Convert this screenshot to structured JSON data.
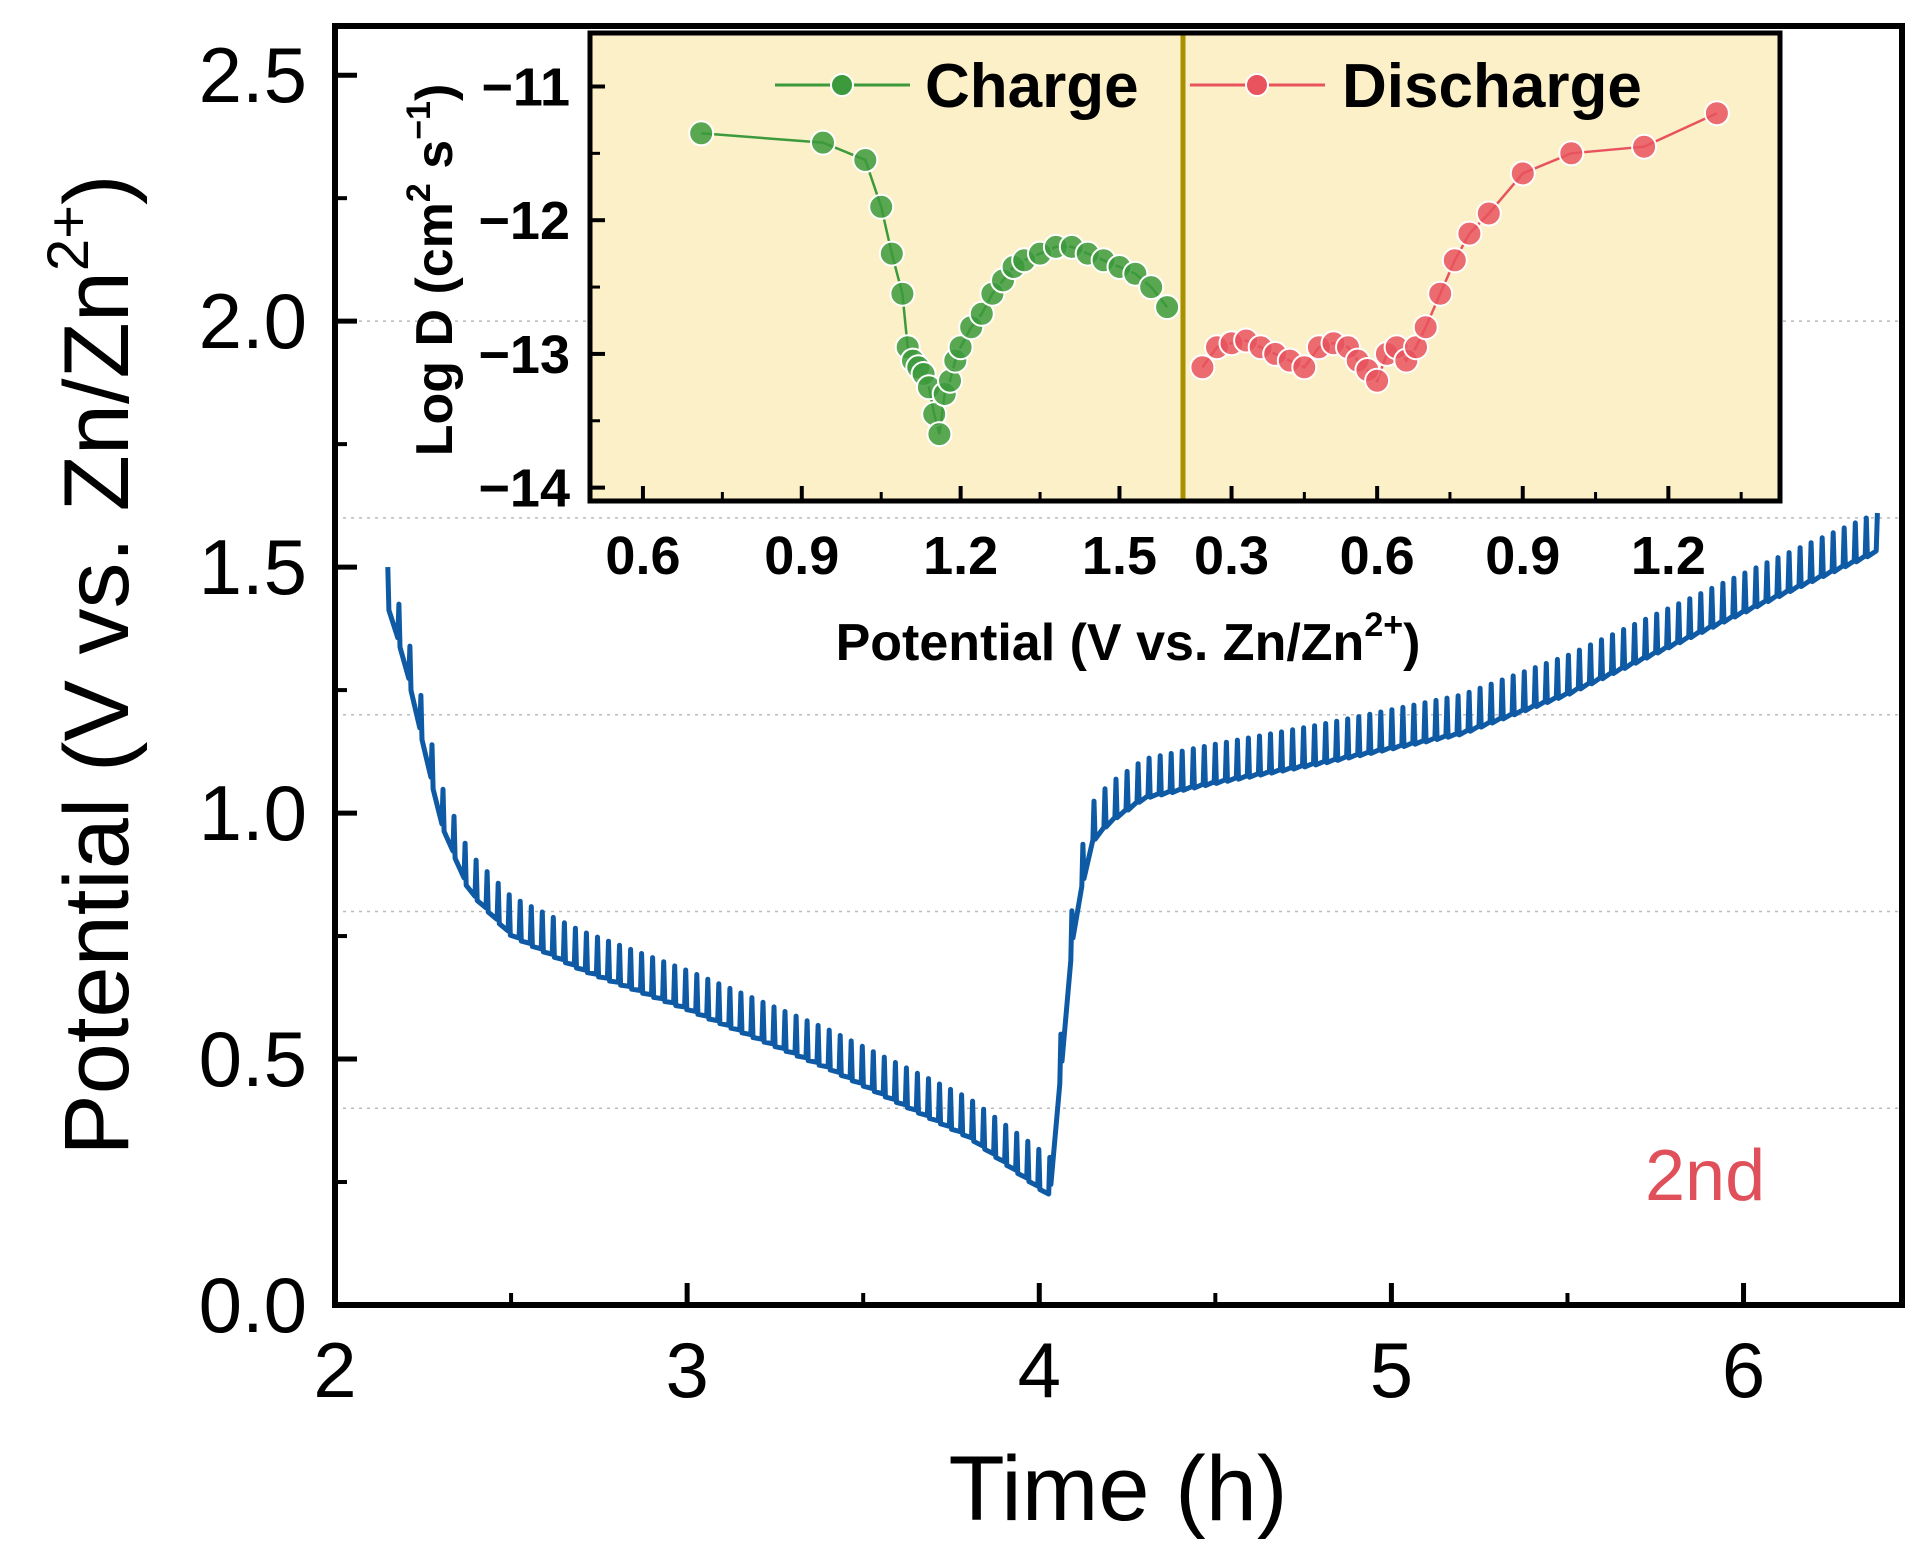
{
  "chart_data": [
    {
      "type": "line",
      "xlabel": "Time (h)",
      "ylabel_main": "Potential (V vs. Zn/Zn",
      "ylabel_sup": "2+",
      "ylabel_close": ")",
      "xlim": [
        2,
        6.45
      ],
      "ylim": [
        0,
        2.6
      ],
      "xticks": [
        "2",
        "3",
        "4",
        "5",
        "6"
      ],
      "yticks": [
        "0.0",
        "0.5",
        "1.0",
        "1.5",
        "2.0",
        "2.5"
      ],
      "annotation": "2nd",
      "annotation_color": "#e0505a",
      "line_color": "#0f5aa5",
      "envelope": {
        "x": [
          2.15,
          2.2,
          2.25,
          2.3,
          2.38,
          2.5,
          2.7,
          3.0,
          3.4,
          3.8,
          4.03,
          4.06,
          4.1,
          4.15,
          4.2,
          4.3,
          4.5,
          4.8,
          5.0,
          5.2,
          5.5,
          5.8,
          6.1,
          6.38
        ],
        "y": [
          1.46,
          1.34,
          1.18,
          1.02,
          0.88,
          0.79,
          0.72,
          0.64,
          0.52,
          0.38,
          0.26,
          0.5,
          0.82,
          0.98,
          1.02,
          1.07,
          1.1,
          1.14,
          1.17,
          1.2,
          1.28,
          1.38,
          1.48,
          1.57
        ]
      },
      "oscillation": {
        "cycles": 135,
        "amplitude": 0.08
      }
    },
    {
      "type": "scatter",
      "xlabel_main": "Potential (V vs. Zn/Zn",
      "xlabel_sup": "2+",
      "xlabel_close": ")",
      "ylabel_main": "Log D (cm",
      "ylabel_sup1": "2",
      "ylabel_mid": " s",
      "ylabel_sup2": "−1",
      "ylabel_close": ")",
      "ylim": [
        -14.1,
        -10.6
      ],
      "yticks": [
        "−11",
        "−12",
        "−13",
        "−14"
      ],
      "background": "#fbf0c8",
      "divider_color": "#a89000",
      "series": [
        {
          "name": "Charge",
          "color": "#3c9a3c",
          "xlim": [
            0.5,
            1.62
          ],
          "xticks": [
            "0.6",
            "0.9",
            "1.2",
            "1.5"
          ],
          "x": [
            0.71,
            0.94,
            1.02,
            1.05,
            1.07,
            1.09,
            1.1,
            1.11,
            1.12,
            1.13,
            1.14,
            1.15,
            1.16,
            1.17,
            1.18,
            1.19,
            1.2,
            1.22,
            1.24,
            1.26,
            1.28,
            1.3,
            1.32,
            1.35,
            1.38,
            1.41,
            1.44,
            1.47,
            1.5,
            1.53,
            1.56,
            1.59
          ],
          "y": [
            -11.35,
            -11.42,
            -11.55,
            -11.9,
            -12.25,
            -12.55,
            -12.95,
            -13.05,
            -13.1,
            -13.15,
            -13.25,
            -13.45,
            -13.6,
            -13.3,
            -13.2,
            -13.05,
            -12.95,
            -12.8,
            -12.7,
            -12.55,
            -12.45,
            -12.35,
            -12.3,
            -12.25,
            -12.2,
            -12.2,
            -12.25,
            -12.3,
            -12.35,
            -12.4,
            -12.5,
            -12.65
          ]
        },
        {
          "name": "Discharge",
          "color": "#e8535e",
          "xlim": [
            0.2,
            1.43
          ],
          "xticks": [
            "0.3",
            "0.6",
            "0.9",
            "1.2"
          ],
          "x": [
            0.24,
            0.27,
            0.3,
            0.33,
            0.36,
            0.39,
            0.42,
            0.45,
            0.48,
            0.51,
            0.54,
            0.56,
            0.58,
            0.6,
            0.62,
            0.64,
            0.66,
            0.68,
            0.7,
            0.73,
            0.76,
            0.79,
            0.83,
            0.9,
            1.0,
            1.15,
            1.3
          ],
          "y": [
            -13.1,
            -12.95,
            -12.92,
            -12.9,
            -12.95,
            -13.0,
            -13.05,
            -13.1,
            -12.95,
            -12.92,
            -12.95,
            -13.05,
            -13.12,
            -13.2,
            -13.0,
            -12.95,
            -13.05,
            -12.95,
            -12.8,
            -12.55,
            -12.3,
            -12.1,
            -11.95,
            -11.65,
            -11.5,
            -11.45,
            -11.2
          ]
        }
      ]
    }
  ]
}
